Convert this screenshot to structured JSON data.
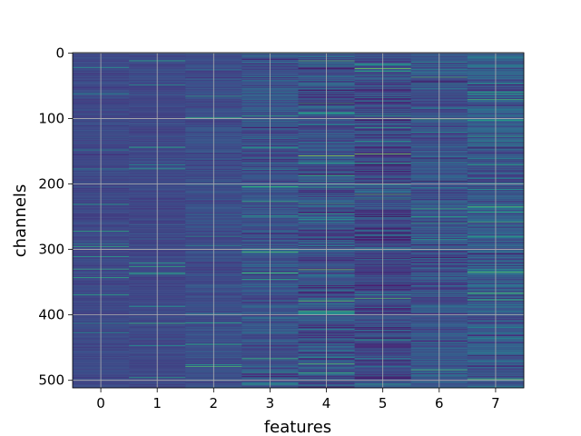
{
  "chart_data": {
    "type": "heatmap",
    "title": "",
    "xlabel": "features",
    "ylabel": "channels",
    "xticks": [
      "0",
      "1",
      "2",
      "3",
      "4",
      "5",
      "6",
      "7"
    ],
    "yticks": [
      "0",
      "100",
      "200",
      "300",
      "400",
      "500"
    ],
    "n_features": 8,
    "n_channels": 512,
    "xlim": [
      -0.5,
      7.5
    ],
    "ylim": [
      511.5,
      -0.5
    ],
    "y_inverted": true,
    "grid": true,
    "colormap": "viridis",
    "feature_column_stats": [
      {
        "feature": 0,
        "mean_level": 0.22,
        "spread": 0.05
      },
      {
        "feature": 1,
        "mean_level": 0.22,
        "spread": 0.05
      },
      {
        "feature": 2,
        "mean_level": 0.24,
        "spread": 0.07
      },
      {
        "feature": 3,
        "mean_level": 0.26,
        "spread": 0.13
      },
      {
        "feature": 4,
        "mean_level": 0.25,
        "spread": 0.18
      },
      {
        "feature": 5,
        "mean_level": 0.22,
        "spread": 0.17
      },
      {
        "feature": 6,
        "mean_level": 0.26,
        "spread": 0.15
      },
      {
        "feature": 7,
        "mean_level": 0.29,
        "spread": 0.17
      }
    ],
    "notable_cells": [
      {
        "feature": 5,
        "channel": 100,
        "level": 0.95
      },
      {
        "feature": 4,
        "channel": 157,
        "level": 0.82
      },
      {
        "feature": 4,
        "channel": 475,
        "level": 0.72
      },
      {
        "feature": 5,
        "channel": 28,
        "level": 0.62
      },
      {
        "feature": 7,
        "channel": 243,
        "level": 0.62
      },
      {
        "feature": 6,
        "channel": 285,
        "level": 0.55
      }
    ]
  }
}
